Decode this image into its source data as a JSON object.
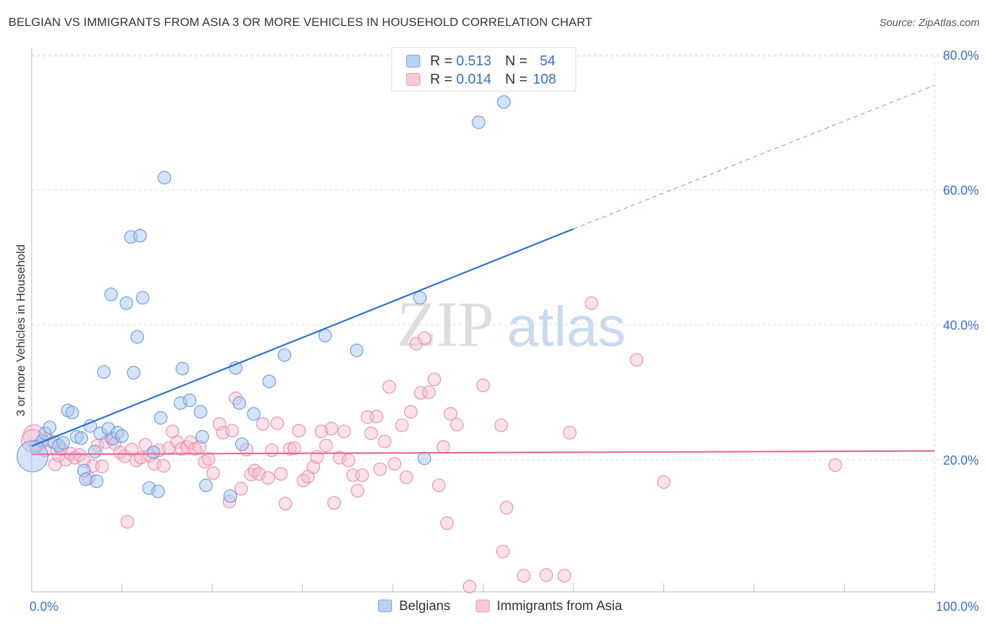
{
  "title": "BELGIAN VS IMMIGRANTS FROM ASIA 3 OR MORE VEHICLES IN HOUSEHOLD CORRELATION CHART",
  "source": "Source: ZipAtlas.com",
  "watermark": {
    "zip": "ZIP",
    "atlas": "atlas"
  },
  "legend_top": [
    {
      "r_label": "R =",
      "r_value": "0.513",
      "n_label": "N =",
      "n_value": "54"
    },
    {
      "r_label": "R =",
      "r_value": "0.014",
      "n_label": "N =",
      "n_value": "108"
    }
  ],
  "legend_bottom": [
    "Belgians",
    "Immigrants from Asia"
  ],
  "chart_data": {
    "type": "scatter",
    "title": "BELGIAN VS IMMIGRANTS FROM ASIA 3 OR MORE VEHICLES IN HOUSEHOLD CORRELATION CHART",
    "xlabel": "",
    "ylabel": "3 or more Vehicles in Household",
    "xlim": [
      0,
      100
    ],
    "ylim": [
      0,
      80
    ],
    "x_tick_labels": [
      "0.0%",
      "100.0%"
    ],
    "y_tick_labels": [
      "20.0%",
      "40.0%",
      "60.0%",
      "80.0%"
    ],
    "y_ticks": [
      20,
      40,
      60,
      80
    ],
    "grid": true,
    "legend_placement": "top-center",
    "colors": {
      "belgians_fill": "#a9c8ef",
      "belgians_stroke": "#6f9fd8",
      "belgians_line": "#2a6fcf",
      "asia_fill": "#f7bcd0",
      "asia_stroke": "#e991b0",
      "asia_line": "#e46a93",
      "tick_label": "#3a6fc5",
      "grid": "#dddddd"
    },
    "series": [
      {
        "name": "Belgians",
        "r": 0.513,
        "n": 54,
        "trend": {
          "x0": 0,
          "y0": 22.0,
          "x1": 60,
          "y1": 54.2,
          "dash_to_x": 100,
          "dash_to_y": 75.5
        },
        "points": [
          [
            0.5,
            22.0
          ],
          [
            1.2,
            22.8
          ],
          [
            1.5,
            23.9
          ],
          [
            2.0,
            24.8
          ],
          [
            2.5,
            22.6
          ],
          [
            3.0,
            22.1
          ],
          [
            3.5,
            22.5
          ],
          [
            4.0,
            27.3
          ],
          [
            4.5,
            27.0
          ],
          [
            5.0,
            23.4
          ],
          [
            5.5,
            23.2
          ],
          [
            5.8,
            18.4
          ],
          [
            6.0,
            17.1
          ],
          [
            6.5,
            25.0
          ],
          [
            7.0,
            21.2
          ],
          [
            7.2,
            16.8
          ],
          [
            7.6,
            23.9
          ],
          [
            8.0,
            33.0
          ],
          [
            8.5,
            24.6
          ],
          [
            8.8,
            44.5
          ],
          [
            9.0,
            23.1
          ],
          [
            9.5,
            24.0
          ],
          [
            10.0,
            23.5
          ],
          [
            10.5,
            43.2
          ],
          [
            11.0,
            53.0
          ],
          [
            11.3,
            32.9
          ],
          [
            11.7,
            38.2
          ],
          [
            12.0,
            53.2
          ],
          [
            12.3,
            44.0
          ],
          [
            13.0,
            15.8
          ],
          [
            13.5,
            21.1
          ],
          [
            14.0,
            15.3
          ],
          [
            14.3,
            26.2
          ],
          [
            14.7,
            61.8
          ],
          [
            16.5,
            28.4
          ],
          [
            16.7,
            33.5
          ],
          [
            17.5,
            28.8
          ],
          [
            18.7,
            27.1
          ],
          [
            18.9,
            23.4
          ],
          [
            19.3,
            16.2
          ],
          [
            22.0,
            14.6
          ],
          [
            22.6,
            33.6
          ],
          [
            23.0,
            28.4
          ],
          [
            23.3,
            22.3
          ],
          [
            24.6,
            26.8
          ],
          [
            26.3,
            31.6
          ],
          [
            28.0,
            35.5
          ],
          [
            32.5,
            38.4
          ],
          [
            36.0,
            36.2
          ],
          [
            43.0,
            44.0
          ],
          [
            43.5,
            20.2
          ],
          [
            49.5,
            70.0
          ],
          [
            52.3,
            73.0
          ],
          [
            0.1,
            20.5
          ]
        ]
      },
      {
        "name": "Immigrants from Asia",
        "r": 0.014,
        "n": 108,
        "trend": {
          "x0": 0,
          "y0": 20.8,
          "x1": 100,
          "y1": 21.3
        },
        "points": [
          [
            0.3,
            23.5
          ],
          [
            0.8,
            22.1
          ],
          [
            1.5,
            21.4
          ],
          [
            2.0,
            22.8
          ],
          [
            2.6,
            19.3
          ],
          [
            3.0,
            20.6
          ],
          [
            3.3,
            21.6
          ],
          [
            3.8,
            20.0
          ],
          [
            4.3,
            20.9
          ],
          [
            4.8,
            20.3
          ],
          [
            5.3,
            20.7
          ],
          [
            5.8,
            19.8
          ],
          [
            6.3,
            17.3
          ],
          [
            6.8,
            19.1
          ],
          [
            7.3,
            22.1
          ],
          [
            7.8,
            19.0
          ],
          [
            8.2,
            22.6
          ],
          [
            8.8,
            23.2
          ],
          [
            9.2,
            22.4
          ],
          [
            9.8,
            21.1
          ],
          [
            10.3,
            20.5
          ],
          [
            10.6,
            10.8
          ],
          [
            11.1,
            21.5
          ],
          [
            11.6,
            19.9
          ],
          [
            12.1,
            20.3
          ],
          [
            12.6,
            22.2
          ],
          [
            13.1,
            20.6
          ],
          [
            13.6,
            19.4
          ],
          [
            14.1,
            21.4
          ],
          [
            14.6,
            19.1
          ],
          [
            15.2,
            21.7
          ],
          [
            15.6,
            24.2
          ],
          [
            16.1,
            22.6
          ],
          [
            16.6,
            21.6
          ],
          [
            17.2,
            21.9
          ],
          [
            17.6,
            22.6
          ],
          [
            18.1,
            21.6
          ],
          [
            18.6,
            21.9
          ],
          [
            19.2,
            19.7
          ],
          [
            19.6,
            20.1
          ],
          [
            20.1,
            18.0
          ],
          [
            20.8,
            25.3
          ],
          [
            21.2,
            24.0
          ],
          [
            21.9,
            13.8
          ],
          [
            22.2,
            24.3
          ],
          [
            22.6,
            29.1
          ],
          [
            23.2,
            15.7
          ],
          [
            23.8,
            21.5
          ],
          [
            24.3,
            17.8
          ],
          [
            24.7,
            18.4
          ],
          [
            25.2,
            17.9
          ],
          [
            25.6,
            25.3
          ],
          [
            26.2,
            17.3
          ],
          [
            26.6,
            21.4
          ],
          [
            27.2,
            25.4
          ],
          [
            27.6,
            17.9
          ],
          [
            28.1,
            13.5
          ],
          [
            28.6,
            21.6
          ],
          [
            29.1,
            21.7
          ],
          [
            29.6,
            24.3
          ],
          [
            30.1,
            16.9
          ],
          [
            30.6,
            17.5
          ],
          [
            31.2,
            18.9
          ],
          [
            31.6,
            20.4
          ],
          [
            32.1,
            24.2
          ],
          [
            32.6,
            22.1
          ],
          [
            33.2,
            24.6
          ],
          [
            33.5,
            13.6
          ],
          [
            34.1,
            20.3
          ],
          [
            34.6,
            24.2
          ],
          [
            35.1,
            19.9
          ],
          [
            35.6,
            17.7
          ],
          [
            36.1,
            15.4
          ],
          [
            36.6,
            17.7
          ],
          [
            37.2,
            26.3
          ],
          [
            37.6,
            23.9
          ],
          [
            38.2,
            26.4
          ],
          [
            38.6,
            18.6
          ],
          [
            39.1,
            22.7
          ],
          [
            39.6,
            30.8
          ],
          [
            40.2,
            19.4
          ],
          [
            41.0,
            25.1
          ],
          [
            41.5,
            17.4
          ],
          [
            42.0,
            27.1
          ],
          [
            42.6,
            37.2
          ],
          [
            43.1,
            29.9
          ],
          [
            43.5,
            38.0
          ],
          [
            44.0,
            30.0
          ],
          [
            44.6,
            31.9
          ],
          [
            45.1,
            16.2
          ],
          [
            45.6,
            21.9
          ],
          [
            46.0,
            10.6
          ],
          [
            46.4,
            26.8
          ],
          [
            47.1,
            25.2
          ],
          [
            48.5,
            1.2
          ],
          [
            50.0,
            31.0
          ],
          [
            52.0,
            25.1
          ],
          [
            52.6,
            12.9
          ],
          [
            52.2,
            6.4
          ],
          [
            54.5,
            2.8
          ],
          [
            57.0,
            2.9
          ],
          [
            59.0,
            2.8
          ],
          [
            59.6,
            24.0
          ],
          [
            62.0,
            43.2
          ],
          [
            67.0,
            34.8
          ],
          [
            70.0,
            16.7
          ],
          [
            89.0,
            19.2
          ],
          [
            0.1,
            22.8
          ]
        ]
      }
    ]
  }
}
